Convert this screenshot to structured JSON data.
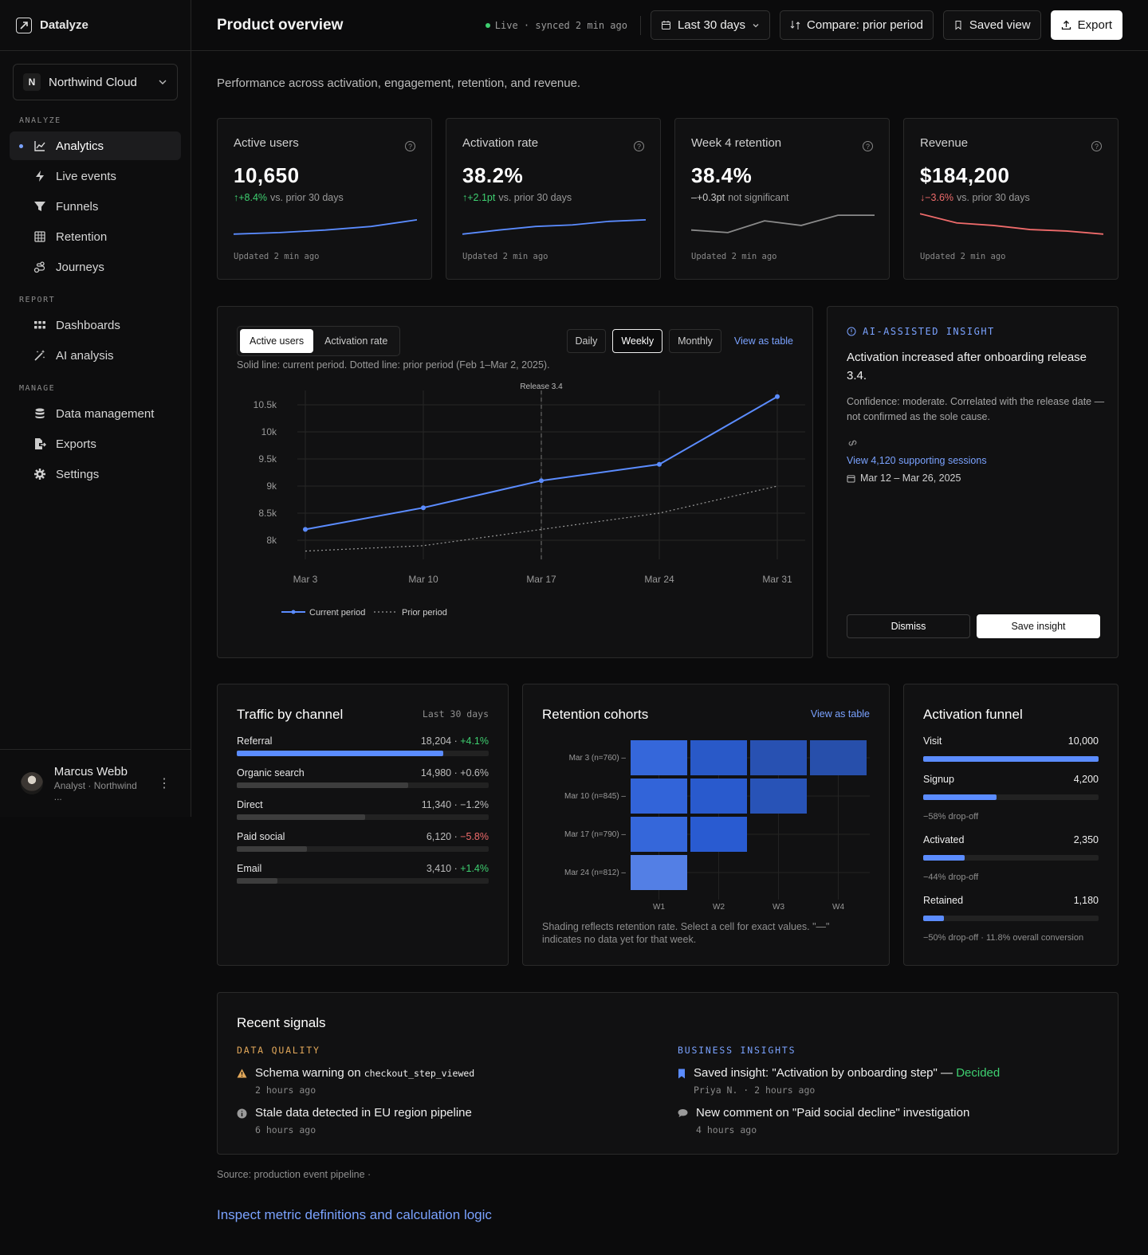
{
  "app": {
    "name": "Datalyze"
  },
  "org": {
    "initial": "N",
    "name": "Northwind Cloud"
  },
  "sidebar": {
    "sections": [
      {
        "title": "ANALYZE",
        "items": [
          {
            "label": "Analytics",
            "icon": "chart-line-icon",
            "active": true
          },
          {
            "label": "Live events",
            "icon": "lightning-icon"
          },
          {
            "label": "Funnels",
            "icon": "funnel-icon"
          },
          {
            "label": "Retention",
            "icon": "grid-icon"
          },
          {
            "label": "Journeys",
            "icon": "journey-icon"
          }
        ]
      },
      {
        "title": "REPORT",
        "items": [
          {
            "label": "Dashboards",
            "icon": "dashboard-icon"
          },
          {
            "label": "AI analysis",
            "icon": "magic-wand-icon"
          }
        ]
      },
      {
        "title": "MANAGE",
        "items": [
          {
            "label": "Data management",
            "icon": "database-icon"
          },
          {
            "label": "Exports",
            "icon": "export-file-icon"
          },
          {
            "label": "Settings",
            "icon": "gear-icon"
          }
        ]
      }
    ]
  },
  "user": {
    "name": "Marcus Webb",
    "role": "Analyst · Northwind ..."
  },
  "header": {
    "title": "Product overview",
    "status": "Live · synced 2 min ago",
    "date_range": "Last 30 days",
    "compare": "Compare: prior period",
    "saved_view": "Saved view",
    "export": "Export"
  },
  "subtitle": "Performance across activation, engagement, retention, and revenue.",
  "kpis": [
    {
      "title": "Active users",
      "value": "10,650",
      "arrow": "↑",
      "delta": "+8.4%",
      "dir": "up",
      "note": "vs. prior 30 days",
      "updated": "Updated 2 min ago",
      "spark": [
        1.0,
        1.6,
        2.6,
        4.0,
        6.6
      ],
      "color": "#5b8cff"
    },
    {
      "title": "Activation rate",
      "value": "38.2%",
      "arrow": "↑",
      "delta": "+2.1pt",
      "dir": "up",
      "note": "vs. prior 30 days",
      "updated": "Updated 2 min ago",
      "spark": [
        1.0,
        2.6,
        4.0,
        4.6,
        6.0,
        6.6
      ],
      "color": "#5b8cff"
    },
    {
      "title": "Week 4 retention",
      "value": "38.4%",
      "arrow": "–",
      "delta": "+0.3pt",
      "dir": "flat",
      "note": "not significant",
      "updated": "Updated 2 min ago",
      "spark": [
        2.6,
        1.6,
        6.2,
        4.4,
        8.4,
        8.4
      ],
      "color": "#8a8a8a"
    },
    {
      "title": "Revenue",
      "value": "$184,200",
      "arrow": "↓",
      "delta": "−3.6%",
      "dir": "down",
      "note": "vs. prior 30 days",
      "updated": "Updated 2 min ago",
      "spark": [
        9.0,
        5.4,
        4.4,
        2.8,
        2.2,
        1.0
      ],
      "color": "#ef6b6b"
    }
  ],
  "main_chart": {
    "metric_tabs": [
      "Active users",
      "Activation rate"
    ],
    "granularity": [
      "Daily",
      "Weekly",
      "Monthly"
    ],
    "view_table": "View as table",
    "note": "Solid line: current period. Dotted line: prior period (Feb 1–Mar 2, 2025)."
  },
  "chart_data": {
    "type": "line",
    "x": [
      "Mar 3",
      "Mar 10",
      "Mar 17",
      "Mar 24",
      "Mar 31"
    ],
    "series": [
      {
        "name": "Current period",
        "values": [
          8200,
          8600,
          9100,
          9400,
          10650
        ],
        "style": "solid",
        "color": "#5b8cff"
      },
      {
        "name": "Prior period",
        "values": [
          7800,
          7900,
          8200,
          8500,
          9000
        ],
        "style": "dotted",
        "color": "#9a9a9a"
      }
    ],
    "yticks": [
      "8k",
      "8.5k",
      "9k",
      "9.5k",
      "10k",
      "10.5k"
    ],
    "ylim": [
      8000,
      10500
    ],
    "annotation": {
      "label": "Release 3.4",
      "x": "Mar 17"
    },
    "grid": true,
    "legend": "bottom-left"
  },
  "insight": {
    "tag": "AI-ASSISTED INSIGHT",
    "title": "Activation increased after onboarding release 3.4.",
    "confidence": "Confidence: moderate. Correlated with the release date — not confirmed as the sole cause.",
    "link": "View 4,120 supporting sessions",
    "dates": "Mar 12 – Mar 26, 2025",
    "dismiss": "Dismiss",
    "save": "Save insight"
  },
  "traffic": {
    "title": "Traffic by channel",
    "range": "Last 30 days",
    "rows": [
      {
        "label": "Referral",
        "value": "18,204",
        "change": "+4.1%",
        "dir": "up",
        "share": 0.82,
        "highlight": true
      },
      {
        "label": "Organic search",
        "value": "14,980",
        "change": "+0.6%",
        "dir": "flat",
        "share": 0.68
      },
      {
        "label": "Direct",
        "value": "11,340",
        "change": "−1.2%",
        "dir": "flat",
        "share": 0.51
      },
      {
        "label": "Paid social",
        "value": "6,120",
        "change": "−5.8%",
        "dir": "down",
        "share": 0.28
      },
      {
        "label": "Email",
        "value": "3,410",
        "change": "+1.4%",
        "dir": "up",
        "share": 0.16
      }
    ]
  },
  "retention": {
    "title": "Retention cohorts",
    "view_table": "View as table",
    "cohorts": [
      "Mar 3 (n=760)",
      "Mar 10 (n=845)",
      "Mar 17 (n=790)",
      "Mar 24 (n=812)"
    ],
    "weeks": [
      "W1",
      "W2",
      "W3",
      "W4"
    ],
    "cells": [
      [
        0.72,
        0.55,
        0.42,
        0.38
      ],
      [
        0.7,
        0.58,
        0.45,
        null
      ],
      [
        0.72,
        0.6,
        null,
        null
      ],
      [
        0.95,
        null,
        null,
        null
      ]
    ],
    "note": "Shading reflects retention rate. Select a cell for exact values. \"—\" indicates no data yet for that week."
  },
  "funnel": {
    "title": "Activation funnel",
    "steps": [
      {
        "label": "Visit",
        "value": "10,000",
        "share": 1.0,
        "drop": ""
      },
      {
        "label": "Signup",
        "value": "4,200",
        "share": 0.42,
        "drop": "−58% drop-off"
      },
      {
        "label": "Activated",
        "value": "2,350",
        "share": 0.235,
        "drop": "−44% drop-off"
      },
      {
        "label": "Retained",
        "value": "1,180",
        "share": 0.118,
        "drop": "−50% drop-off · 11.8% overall conversion"
      }
    ]
  },
  "signals": {
    "title": "Recent signals",
    "dq_title": "DATA QUALITY",
    "bi_title": "BUSINESS INSIGHTS",
    "dq": [
      {
        "text": "Schema warning on ",
        "code": "checkout_step_viewed",
        "meta": "2 hours ago",
        "icon": "warning-icon"
      },
      {
        "text": "Stale data detected in EU region pipeline",
        "meta": "6 hours ago",
        "icon": "info-icon"
      }
    ],
    "bi": [
      {
        "text": "Saved insight: \"Activation by onboarding step\" — ",
        "status": "Decided",
        "meta": "Priya N. · 2 hours ago",
        "icon": "bookmark-icon"
      },
      {
        "text": "New comment on \"Paid social decline\" investigation",
        "meta": "4 hours ago",
        "icon": "comment-icon"
      }
    ]
  },
  "footer": {
    "source": "Source: production event pipeline ·",
    "link": "Inspect metric definitions and calculation logic"
  }
}
